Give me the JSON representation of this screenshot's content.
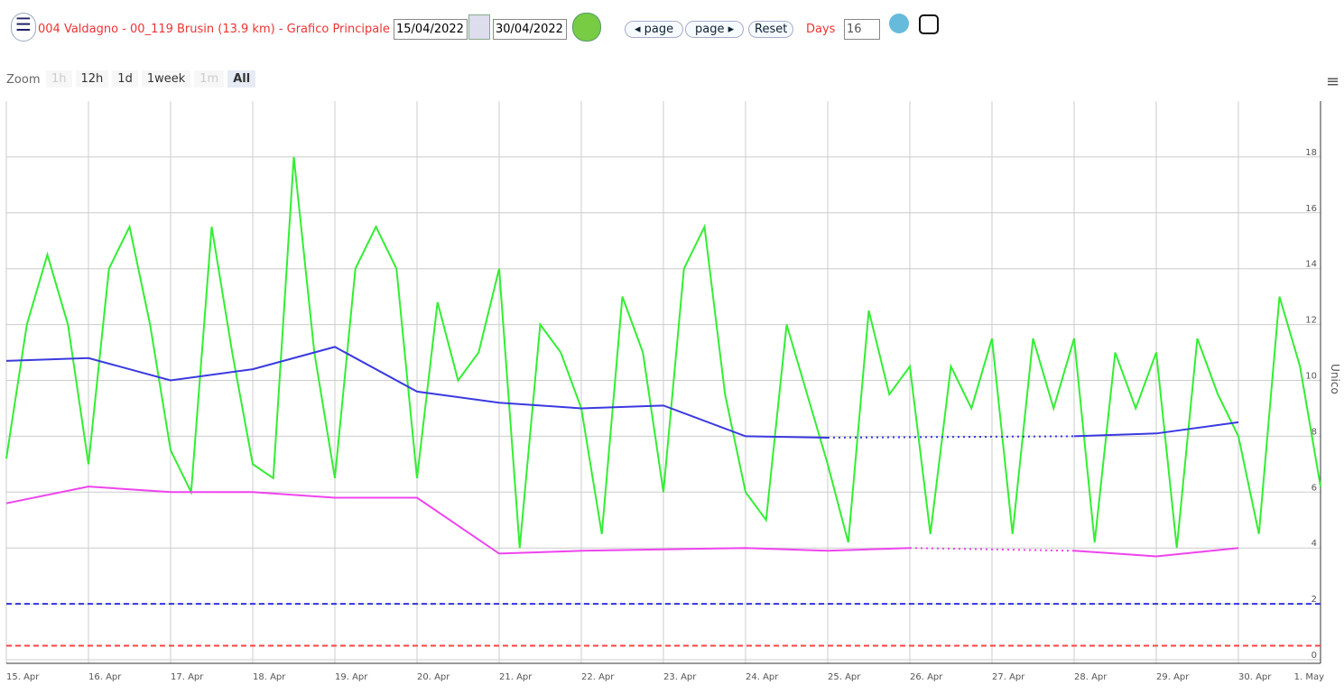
{
  "header": {
    "menu": "☰",
    "title": "004 Valdagno - 00_119 Brusin (13.9 km) - Grafico Principale",
    "date_from": "15/04/2022",
    "date_to": "30/04/2022",
    "prev": "◂ page",
    "next": "page ▸",
    "reset": "Reset",
    "days_label": "Days",
    "days": "16"
  },
  "zoom": {
    "label": "Zoom",
    "buttons": [
      "1h",
      "12h",
      "1d",
      "1week",
      "1m",
      "All"
    ]
  },
  "chart_data": {
    "type": "line",
    "y_label": "Unico",
    "xlim": [
      0,
      16
    ],
    "ylim": [
      0,
      20
    ],
    "xticks": [
      {
        "value": 0,
        "label": "15. Apr"
      },
      {
        "value": 1,
        "label": "16. Apr"
      },
      {
        "value": 2,
        "label": "17. Apr"
      },
      {
        "value": 3,
        "label": "18. Apr"
      },
      {
        "value": 4,
        "label": "19. Apr"
      },
      {
        "value": 5,
        "label": "20. Apr"
      },
      {
        "value": 6,
        "label": "21. Apr"
      },
      {
        "value": 7,
        "label": "22. Apr"
      },
      {
        "value": 8,
        "label": "23. Apr"
      },
      {
        "value": 9,
        "label": "24. Apr"
      },
      {
        "value": 10,
        "label": "25. Apr"
      },
      {
        "value": 11,
        "label": "26. Apr"
      },
      {
        "value": 12,
        "label": "27. Apr"
      },
      {
        "value": 13,
        "label": "28. Apr"
      },
      {
        "value": 14,
        "label": "29. Apr"
      },
      {
        "value": 15,
        "label": "30. Apr"
      },
      {
        "value": 16,
        "label": "1. May"
      }
    ],
    "yticks": [
      0,
      2,
      4,
      6,
      8,
      10,
      12,
      14,
      16,
      18
    ],
    "grid": true,
    "thresholds": [
      {
        "value": 2,
        "color": "#3333dd"
      },
      {
        "value": 0.5,
        "color": "#ff4444"
      }
    ],
    "series": [
      {
        "color": "#33ee33",
        "x": [
          0,
          0.25,
          0.5,
          0.75,
          1,
          1.25,
          1.5,
          1.75,
          2,
          2.25,
          2.5,
          2.75,
          3,
          3.25,
          3.5,
          3.75,
          4,
          4.25,
          4.5,
          4.75,
          5,
          5.25,
          5.5,
          5.75,
          6,
          6.25,
          6.5,
          6.75,
          7,
          7.25,
          7.5,
          7.75,
          8,
          8.25,
          8.5,
          8.75,
          9,
          9.25,
          9.5,
          9.75,
          10,
          10.25,
          10.5,
          10.75,
          11,
          11.25,
          11.5,
          11.75,
          12,
          12.25,
          12.5,
          12.75,
          13,
          13.25,
          13.5,
          13.75,
          14,
          14.25,
          14.5,
          14.75,
          15,
          15.25,
          15.5,
          15.75,
          16
        ],
        "values": [
          7.2,
          12,
          14.5,
          12,
          7,
          14,
          15.5,
          12,
          7.5,
          6,
          15.5,
          11,
          7,
          6.5,
          18,
          11,
          6.5,
          14,
          15.5,
          14,
          6.5,
          12.8,
          10,
          11,
          14,
          4,
          12,
          11,
          9,
          4.5,
          13,
          11,
          6,
          14,
          15.5,
          9.5,
          6,
          5,
          12,
          9.5,
          7,
          4.2,
          12.5,
          9.5,
          10.5,
          4.5,
          10.5,
          9,
          11.5,
          4.5,
          11.5,
          9,
          11.5,
          4.2,
          11,
          9,
          11,
          4,
          11.5,
          9.5,
          8,
          4.5,
          13,
          10.5,
          6.2
        ]
      },
      {
        "color": "#3a3ae0",
        "x": [
          0,
          1,
          2,
          3,
          4,
          5,
          6,
          7,
          8,
          9,
          10,
          11,
          12,
          13,
          14,
          15
        ],
        "values": [
          10.7,
          10.8,
          10.0,
          10.4,
          11.2,
          9.6,
          9.2,
          9.0,
          9.1,
          8.0,
          7.95,
          null,
          null,
          8.0,
          8.1,
          8.5
        ]
      },
      {
        "color": "#ee44ee",
        "x": [
          0,
          1,
          2,
          3,
          4,
          5,
          6,
          7,
          8,
          9,
          10,
          11,
          12,
          13,
          14,
          15
        ],
        "values": [
          5.6,
          6.2,
          6.0,
          6.0,
          5.8,
          5.8,
          3.8,
          3.9,
          3.95,
          4.0,
          3.9,
          4.0,
          null,
          3.9,
          3.7,
          4.0
        ]
      }
    ]
  }
}
